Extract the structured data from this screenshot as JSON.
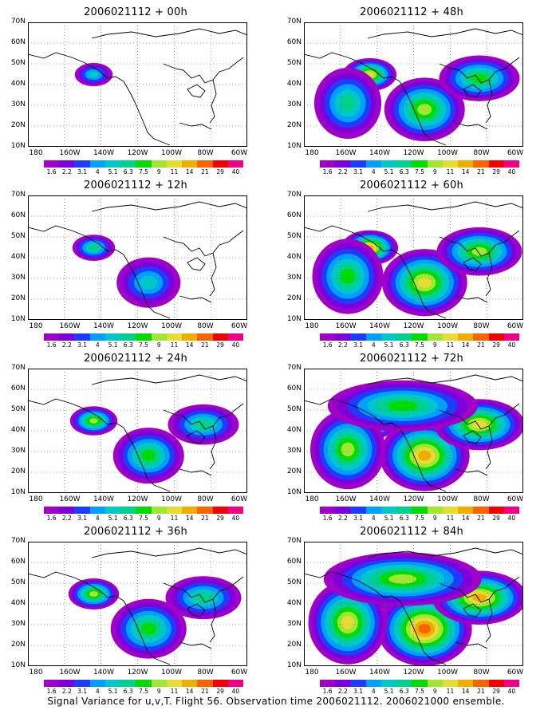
{
  "footer": "Signal Variance for u,v,T. Flight 56. Observation time 2006021112. 2006021000 ensemble.",
  "colors": {
    "levels": [
      "#a000c8",
      "#7d00dc",
      "#1e3cff",
      "#00a0ff",
      "#00c8c8",
      "#00d28c",
      "#00dc00",
      "#a0e632",
      "#e6dc32",
      "#f0af00",
      "#fa6400",
      "#f00000",
      "#f00082"
    ]
  },
  "chart_data": [
    {
      "type": "heatmap",
      "title": "2006021112 + 00h",
      "intensity": 0.2,
      "ylabels": [
        "70N",
        "60N",
        "50N",
        "40N",
        "30N",
        "20N",
        "10N"
      ],
      "xlabels": [
        "180",
        "160W",
        "140W",
        "120W",
        "100W",
        "80W",
        "60W"
      ],
      "colorbar": [
        "1.6",
        "2.2",
        "3.1",
        "4",
        "5.1",
        "6.3",
        "7.5",
        "9",
        "11",
        "14",
        "21",
        "29",
        "40"
      ]
    },
    {
      "type": "heatmap",
      "title": "2006021112 + 12h",
      "intensity": 0.35,
      "ylabels": [
        "70N",
        "60N",
        "50N",
        "40N",
        "30N",
        "20N",
        "10N"
      ],
      "xlabels": [
        "180",
        "160W",
        "140W",
        "120W",
        "100W",
        "80W",
        "60W"
      ],
      "colorbar": [
        "1.6",
        "2.2",
        "3.1",
        "4",
        "5.1",
        "6.3",
        "7.5",
        "9",
        "11",
        "14",
        "21",
        "29",
        "40"
      ]
    },
    {
      "type": "heatmap",
      "title": "2006021112 + 24h",
      "intensity": 0.5,
      "ylabels": [
        "70N",
        "60N",
        "50N",
        "40N",
        "30N",
        "20N",
        "10N"
      ],
      "xlabels": [
        "180",
        "160W",
        "140W",
        "120W",
        "100W",
        "80W",
        "60W"
      ],
      "colorbar": [
        "1.6",
        "2.2",
        "3.1",
        "4",
        "5.1",
        "6.3",
        "7.5",
        "9",
        "11",
        "14",
        "21",
        "29",
        "40"
      ]
    },
    {
      "type": "heatmap",
      "title": "2006021112 + 36h",
      "intensity": 0.6,
      "ylabels": [
        "70N",
        "60N",
        "50N",
        "40N",
        "30N",
        "20N",
        "10N"
      ],
      "xlabels": [
        "180",
        "160W",
        "140W",
        "120W",
        "100W",
        "80W",
        "60W"
      ],
      "colorbar": [
        "1.6",
        "2.2",
        "3.1",
        "4",
        "5.1",
        "6.3",
        "7.5",
        "9",
        "11",
        "14",
        "21",
        "29",
        "40"
      ]
    },
    {
      "type": "heatmap",
      "title": "2006021112 + 48h",
      "intensity": 0.7,
      "ylabels": [
        "70N",
        "60N",
        "50N",
        "40N",
        "30N",
        "20N",
        "10N"
      ],
      "xlabels": [
        "180",
        "160W",
        "140W",
        "120W",
        "100W",
        "80W",
        "60W"
      ],
      "colorbar": [
        "1.6",
        "2.2",
        "3.1",
        "4",
        "5.1",
        "6.3",
        "7.5",
        "9",
        "11",
        "14",
        "21",
        "29",
        "40"
      ]
    },
    {
      "type": "heatmap",
      "title": "2006021112 + 60h",
      "intensity": 0.8,
      "ylabels": [
        "70N",
        "60N",
        "50N",
        "40N",
        "30N",
        "20N",
        "10N"
      ],
      "xlabels": [
        "180",
        "160W",
        "140W",
        "120W",
        "100W",
        "80W",
        "60W"
      ],
      "colorbar": [
        "1.6",
        "2.2",
        "3.1",
        "4",
        "5.1",
        "6.3",
        "7.5",
        "9",
        "11",
        "14",
        "21",
        "29",
        "40"
      ]
    },
    {
      "type": "heatmap",
      "title": "2006021112 + 72h",
      "intensity": 0.9,
      "ylabels": [
        "70N",
        "60N",
        "50N",
        "40N",
        "30N",
        "20N",
        "10N"
      ],
      "xlabels": [
        "180",
        "160W",
        "140W",
        "120W",
        "100W",
        "80W",
        "60W"
      ],
      "colorbar": [
        "1.6",
        "2.2",
        "3.1",
        "4",
        "5.1",
        "6.3",
        "7.5",
        "9",
        "11",
        "14",
        "21",
        "29",
        "40"
      ]
    },
    {
      "type": "heatmap",
      "title": "2006021112 + 84h",
      "intensity": 1.0,
      "ylabels": [
        "70N",
        "60N",
        "50N",
        "40N",
        "30N",
        "20N",
        "10N"
      ],
      "xlabels": [
        "180",
        "160W",
        "140W",
        "120W",
        "100W",
        "80W",
        "60W"
      ],
      "colorbar": [
        "1.6",
        "2.2",
        "3.1",
        "4",
        "5.1",
        "6.3",
        "7.5",
        "9",
        "11",
        "14",
        "21",
        "29",
        "40"
      ]
    }
  ]
}
